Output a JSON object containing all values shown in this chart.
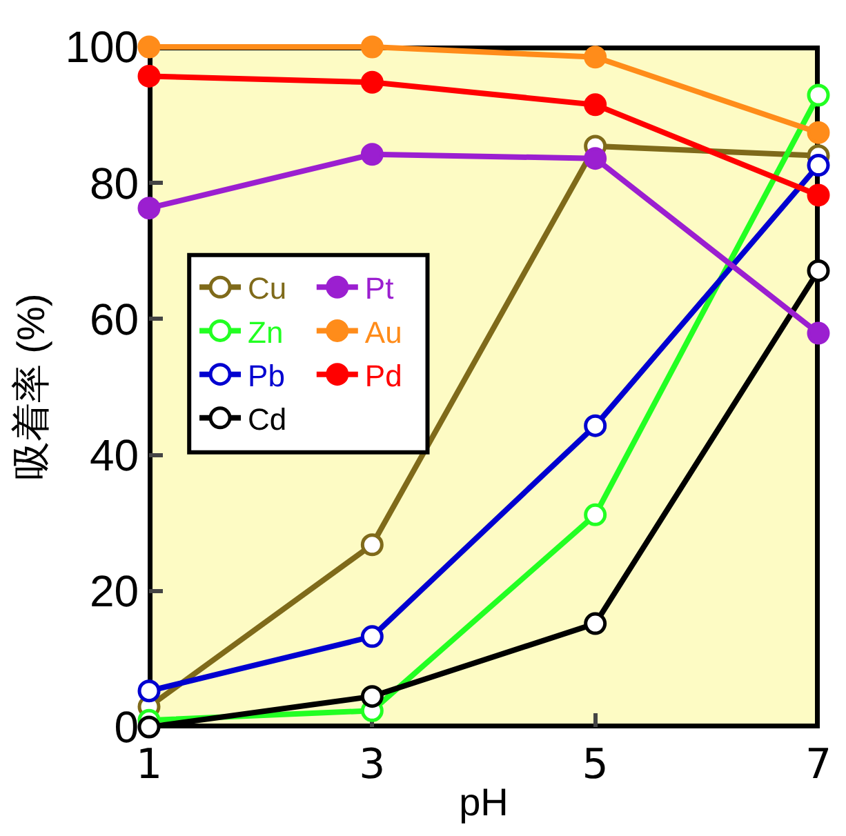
{
  "chart_data": {
    "type": "line",
    "xlabel": "pH",
    "ylabel": "吸着率 (%)",
    "x": [
      1,
      3,
      5,
      7
    ],
    "xlim": [
      1,
      7
    ],
    "xticks": [
      1,
      3,
      5,
      7
    ],
    "ylim": [
      0,
      100
    ],
    "yticks": [
      0,
      20,
      40,
      60,
      80,
      100
    ],
    "grid": false,
    "legend": "top left",
    "marker": "circle",
    "line_style": "solid",
    "series": [
      {
        "name": "Cu",
        "color": "#7f6a1a",
        "marker": "circle-open",
        "values": [
          3,
          26.8,
          85.4,
          84
        ]
      },
      {
        "name": "Zn",
        "color": "#22ff22",
        "marker": "circle-open",
        "values": [
          1,
          2.4,
          31.2,
          92.9
        ]
      },
      {
        "name": "Pb",
        "color": "#0000d0",
        "marker": "circle-open",
        "values": [
          5.3,
          13.3,
          44.3,
          82.6
        ]
      },
      {
        "name": "Cd",
        "color": "#000000",
        "marker": "circle-open",
        "values": [
          0,
          4.5,
          15.2,
          67.1
        ]
      },
      {
        "name": "Pt",
        "color": "#9b1fd0",
        "values": [
          76.3,
          84.2,
          83.6,
          57.9
        ]
      },
      {
        "name": "Au",
        "color": "#ff8c1a",
        "values": [
          100,
          100,
          98.5,
          87.4
        ]
      },
      {
        "name": "Pd",
        "color": "#ff0000",
        "values": [
          95.7,
          94.8,
          91.5,
          78.2
        ]
      }
    ]
  }
}
